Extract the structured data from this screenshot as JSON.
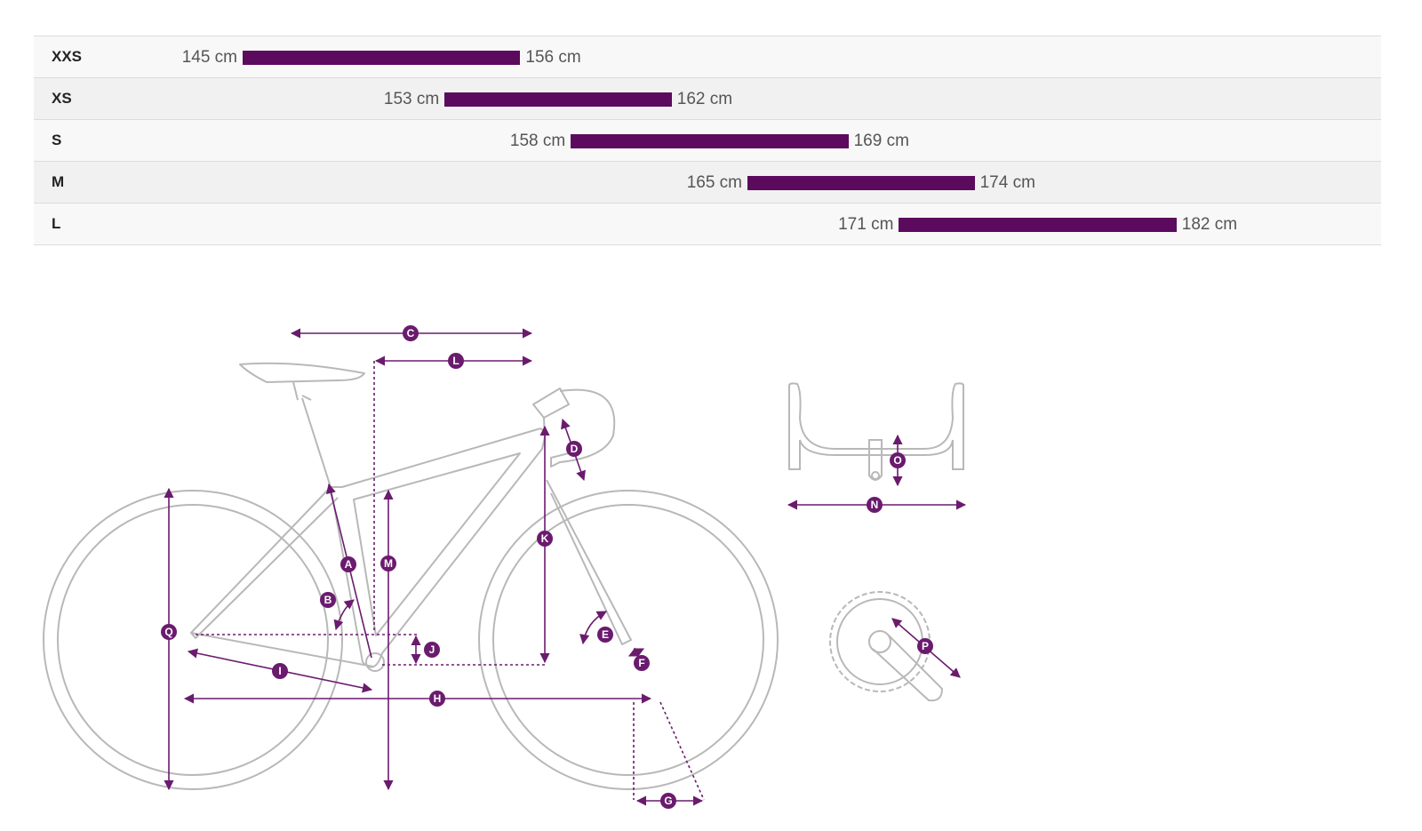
{
  "chart_data": {
    "type": "bar",
    "unit": "cm",
    "categories": [
      "XXS",
      "XS",
      "S",
      "M",
      "L"
    ],
    "ranges": [
      {
        "size": "XXS",
        "min": 145,
        "max": 156,
        "min_label": "145 cm",
        "max_label": "156 cm"
      },
      {
        "size": "XS",
        "min": 153,
        "max": 162,
        "min_label": "153 cm",
        "max_label": "162 cm"
      },
      {
        "size": "S",
        "min": 158,
        "max": 169,
        "min_label": "158 cm",
        "max_label": "169 cm"
      },
      {
        "size": "M",
        "min": 165,
        "max": 174,
        "min_label": "165 cm",
        "max_label": "174 cm"
      },
      {
        "size": "L",
        "min": 171,
        "max": 182,
        "min_label": "171 cm",
        "max_label": "182 cm"
      }
    ],
    "bar_color": "#5c0a5e"
  },
  "geometry_diagram": {
    "accent_color": "#6a1b6e",
    "line_color": "#b3b3b3",
    "markers": [
      "A",
      "B",
      "C",
      "D",
      "E",
      "F",
      "G",
      "H",
      "I",
      "J",
      "K",
      "L",
      "M",
      "N",
      "O",
      "P",
      "Q"
    ]
  }
}
